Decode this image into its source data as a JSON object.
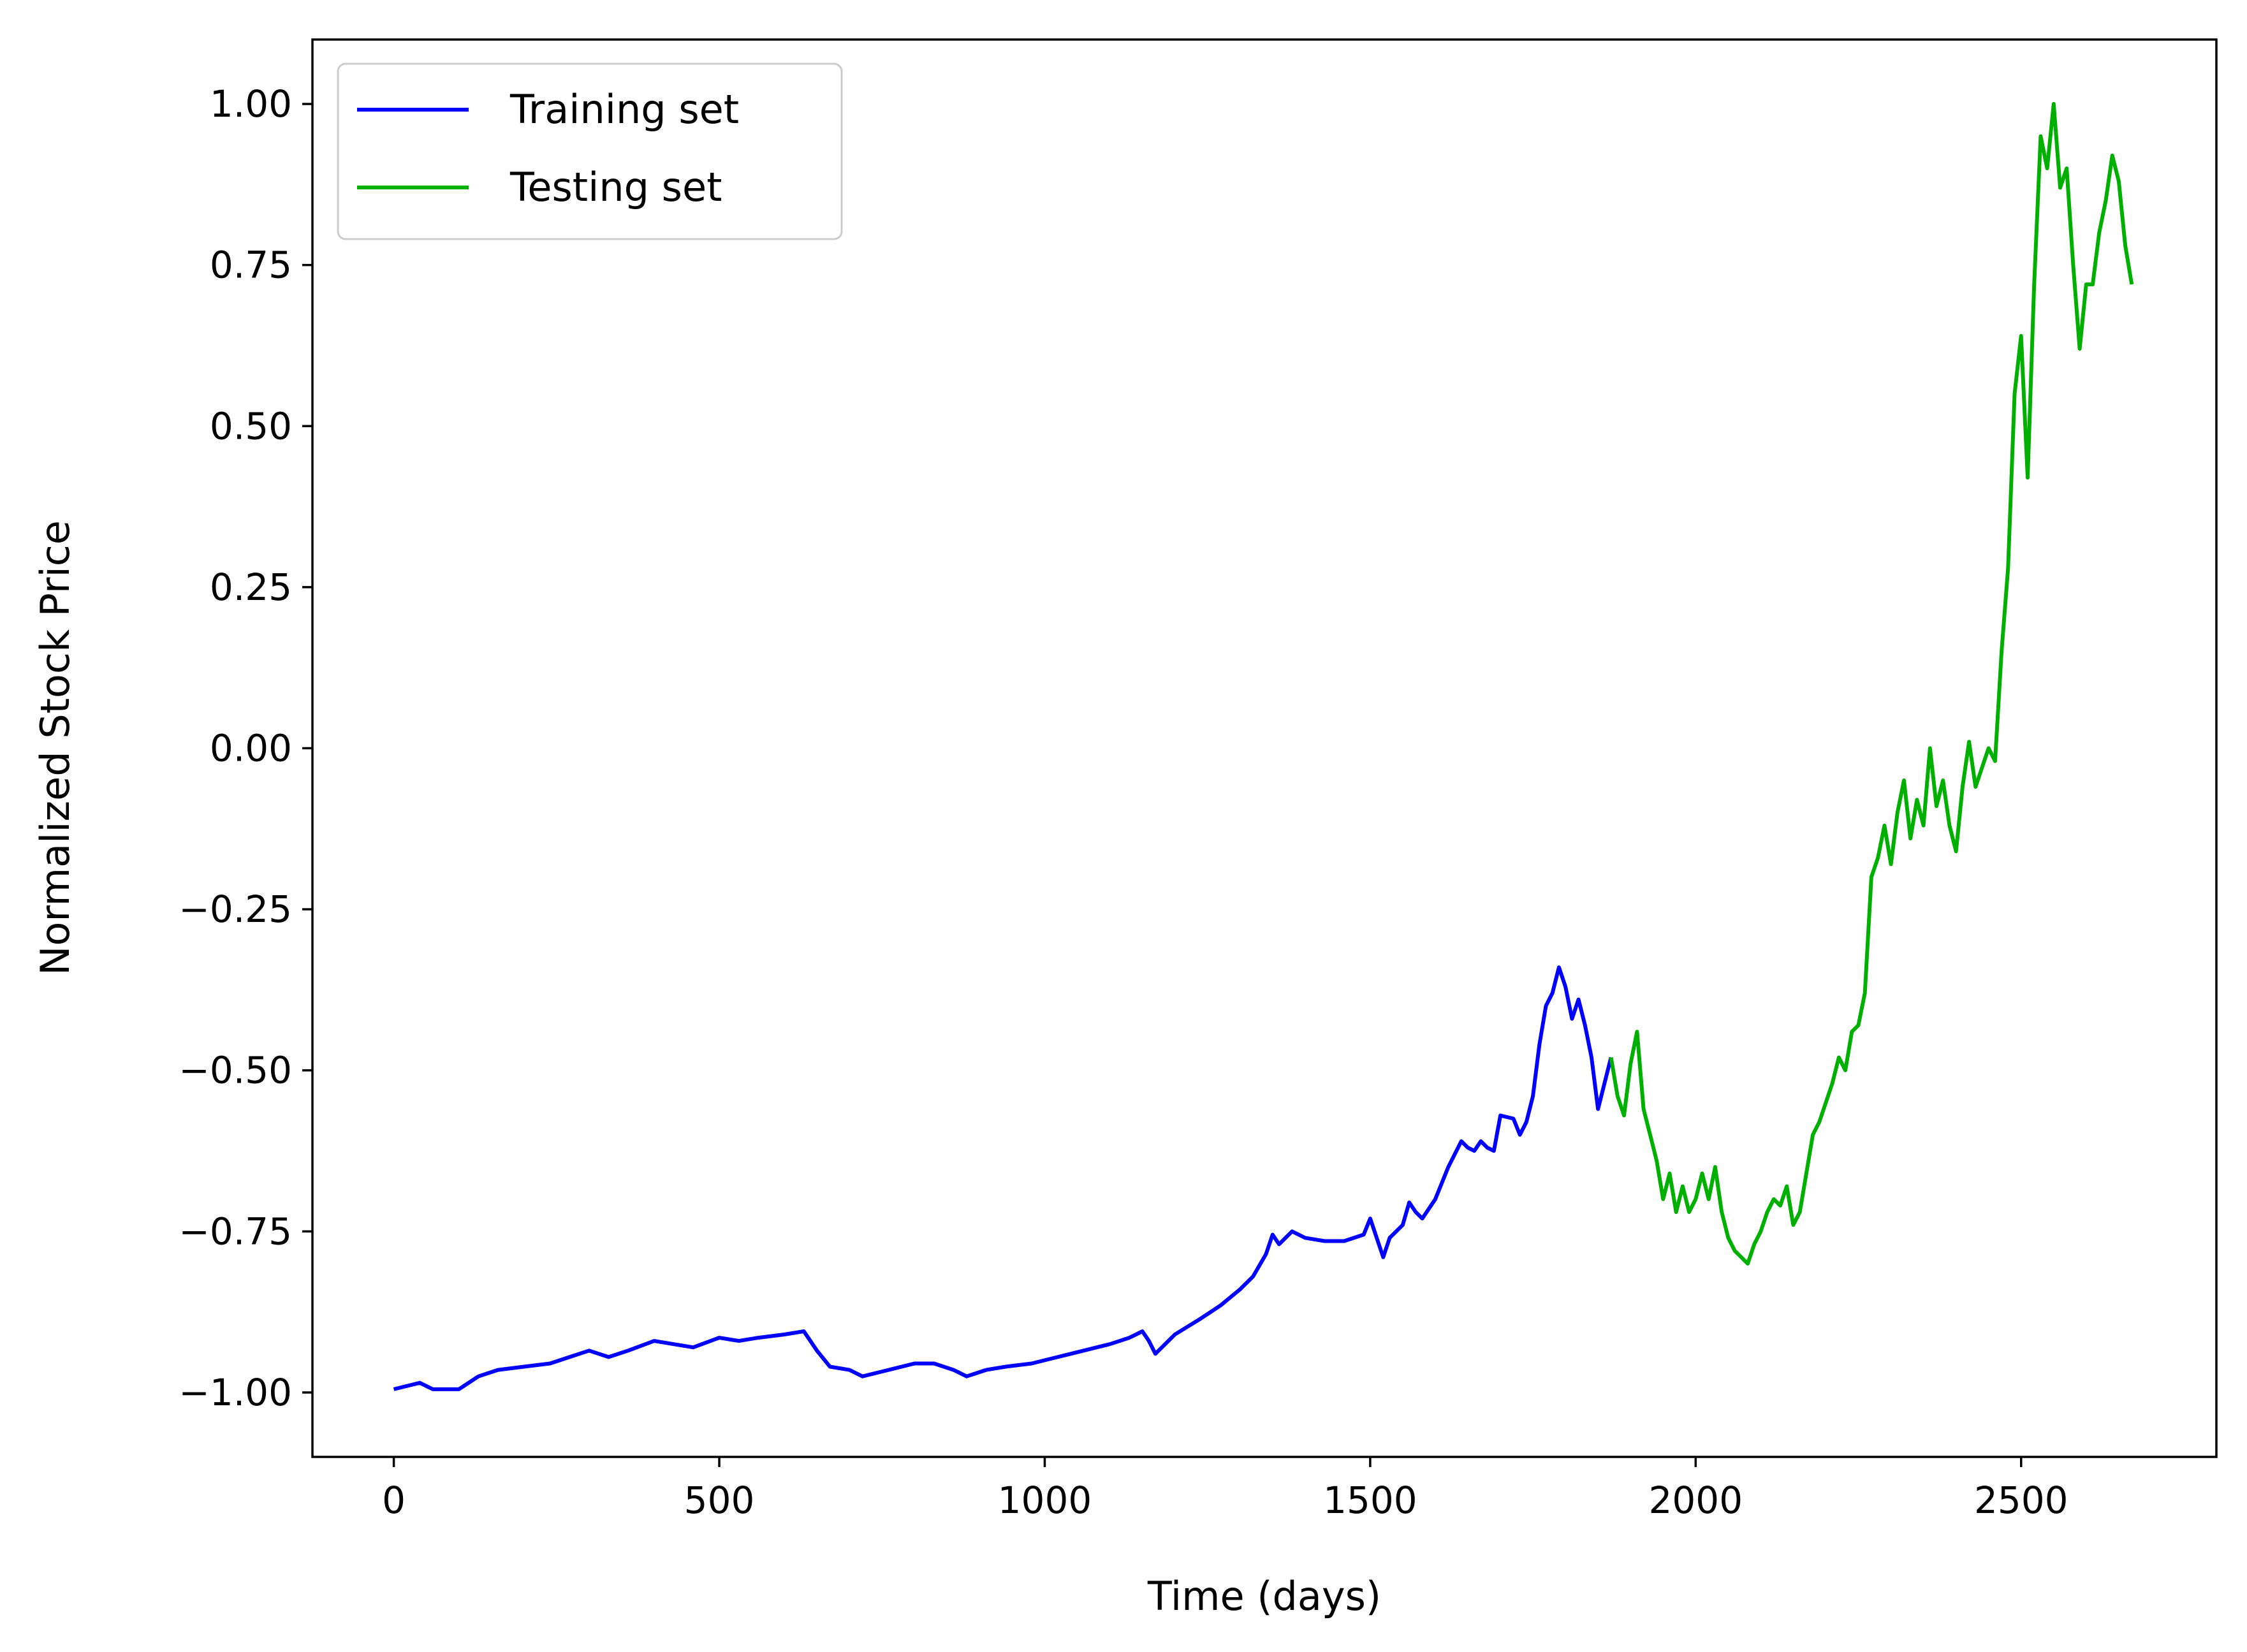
{
  "chart_data": {
    "type": "line",
    "title": "",
    "xlabel": "Time (days)",
    "ylabel": "Normalized Stock Price",
    "xlim": [
      -125,
      2800
    ],
    "ylim": [
      -1.1,
      1.1
    ],
    "xticks": [
      0,
      500,
      1000,
      1500,
      2000,
      2500
    ],
    "xtick_labels": [
      "0",
      "500",
      "1000",
      "1500",
      "2000",
      "2500"
    ],
    "yticks": [
      1.0,
      0.75,
      0.5,
      0.25,
      0.0,
      -0.25,
      -0.5,
      -0.75,
      -1.0
    ],
    "ytick_labels": [
      "1.00",
      "0.75",
      "0.50",
      "0.25",
      "0.00",
      "−0.25",
      "−0.50",
      "−0.75",
      "−1.00"
    ],
    "grid": false,
    "legend_position": "top-left",
    "series": [
      {
        "name": "Training set",
        "color": "#0000ff",
        "x": [
          0,
          40,
          60,
          100,
          130,
          160,
          200,
          240,
          270,
          300,
          330,
          360,
          400,
          430,
          460,
          500,
          530,
          560,
          600,
          630,
          650,
          670,
          700,
          720,
          760,
          800,
          830,
          860,
          880,
          910,
          940,
          980,
          1000,
          1040,
          1080,
          1100,
          1130,
          1150,
          1160,
          1170,
          1200,
          1240,
          1270,
          1300,
          1320,
          1340,
          1350,
          1360,
          1380,
          1400,
          1430,
          1460,
          1490,
          1500,
          1510,
          1520,
          1530,
          1550,
          1560,
          1570,
          1580,
          1600,
          1620,
          1640,
          1650,
          1660,
          1670,
          1680,
          1690,
          1700,
          1720,
          1730,
          1740,
          1750,
          1760,
          1770,
          1780,
          1790,
          1800,
          1810,
          1820,
          1830,
          1840,
          1850,
          1860,
          1870
        ],
        "values": [
          -0.995,
          -0.985,
          -0.995,
          -0.995,
          -0.975,
          -0.965,
          -0.96,
          -0.955,
          -0.945,
          -0.935,
          -0.945,
          -0.935,
          -0.92,
          -0.925,
          -0.93,
          -0.915,
          -0.92,
          -0.915,
          -0.91,
          -0.905,
          -0.935,
          -0.96,
          -0.965,
          -0.975,
          -0.965,
          -0.955,
          -0.955,
          -0.965,
          -0.975,
          -0.965,
          -0.96,
          -0.955,
          -0.95,
          -0.94,
          -0.93,
          -0.925,
          -0.915,
          -0.905,
          -0.92,
          -0.94,
          -0.91,
          -0.885,
          -0.865,
          -0.84,
          -0.82,
          -0.785,
          -0.755,
          -0.77,
          -0.75,
          -0.76,
          -0.765,
          -0.765,
          -0.755,
          -0.73,
          -0.76,
          -0.79,
          -0.76,
          -0.74,
          -0.705,
          -0.72,
          -0.73,
          -0.7,
          -0.65,
          -0.61,
          -0.62,
          -0.625,
          -0.61,
          -0.62,
          -0.625,
          -0.57,
          -0.575,
          -0.6,
          -0.58,
          -0.54,
          -0.46,
          -0.4,
          -0.38,
          -0.34,
          -0.37,
          -0.42,
          -0.39,
          -0.43,
          -0.48,
          -0.56,
          -0.52,
          -0.48
        ]
      },
      {
        "name": "Testing set",
        "color": "#00b000",
        "x": [
          1870,
          1880,
          1890,
          1900,
          1910,
          1920,
          1930,
          1940,
          1950,
          1960,
          1970,
          1980,
          1990,
          2000,
          2010,
          2020,
          2030,
          2040,
          2050,
          2060,
          2070,
          2080,
          2090,
          2100,
          2110,
          2120,
          2130,
          2140,
          2150,
          2160,
          2170,
          2180,
          2190,
          2200,
          2210,
          2220,
          2230,
          2240,
          2250,
          2260,
          2270,
          2280,
          2290,
          2300,
          2310,
          2320,
          2330,
          2340,
          2350,
          2360,
          2370,
          2380,
          2390,
          2400,
          2410,
          2420,
          2430,
          2440,
          2450,
          2460,
          2470,
          2480,
          2490,
          2500,
          2510,
          2520,
          2530,
          2540,
          2550,
          2560,
          2570,
          2580,
          2590,
          2600,
          2610,
          2620,
          2630,
          2640,
          2650,
          2660,
          2670
        ],
        "values": [
          -0.48,
          -0.54,
          -0.57,
          -0.49,
          -0.44,
          -0.56,
          -0.6,
          -0.64,
          -0.7,
          -0.66,
          -0.72,
          -0.68,
          -0.72,
          -0.7,
          -0.66,
          -0.7,
          -0.65,
          -0.72,
          -0.76,
          -0.78,
          -0.79,
          -0.8,
          -0.77,
          -0.75,
          -0.72,
          -0.7,
          -0.71,
          -0.68,
          -0.74,
          -0.72,
          -0.66,
          -0.6,
          -0.58,
          -0.55,
          -0.52,
          -0.48,
          -0.5,
          -0.44,
          -0.43,
          -0.38,
          -0.2,
          -0.17,
          -0.12,
          -0.18,
          -0.1,
          -0.05,
          -0.14,
          -0.08,
          -0.12,
          0.0,
          -0.09,
          -0.05,
          -0.12,
          -0.16,
          -0.06,
          0.01,
          -0.06,
          -0.03,
          0.0,
          -0.02,
          0.15,
          0.28,
          0.55,
          0.64,
          0.42,
          0.72,
          0.95,
          0.9,
          1.0,
          0.87,
          0.9,
          0.75,
          0.62,
          0.72,
          0.72,
          0.8,
          0.85,
          0.92,
          0.88,
          0.78,
          0.72
        ]
      }
    ]
  }
}
